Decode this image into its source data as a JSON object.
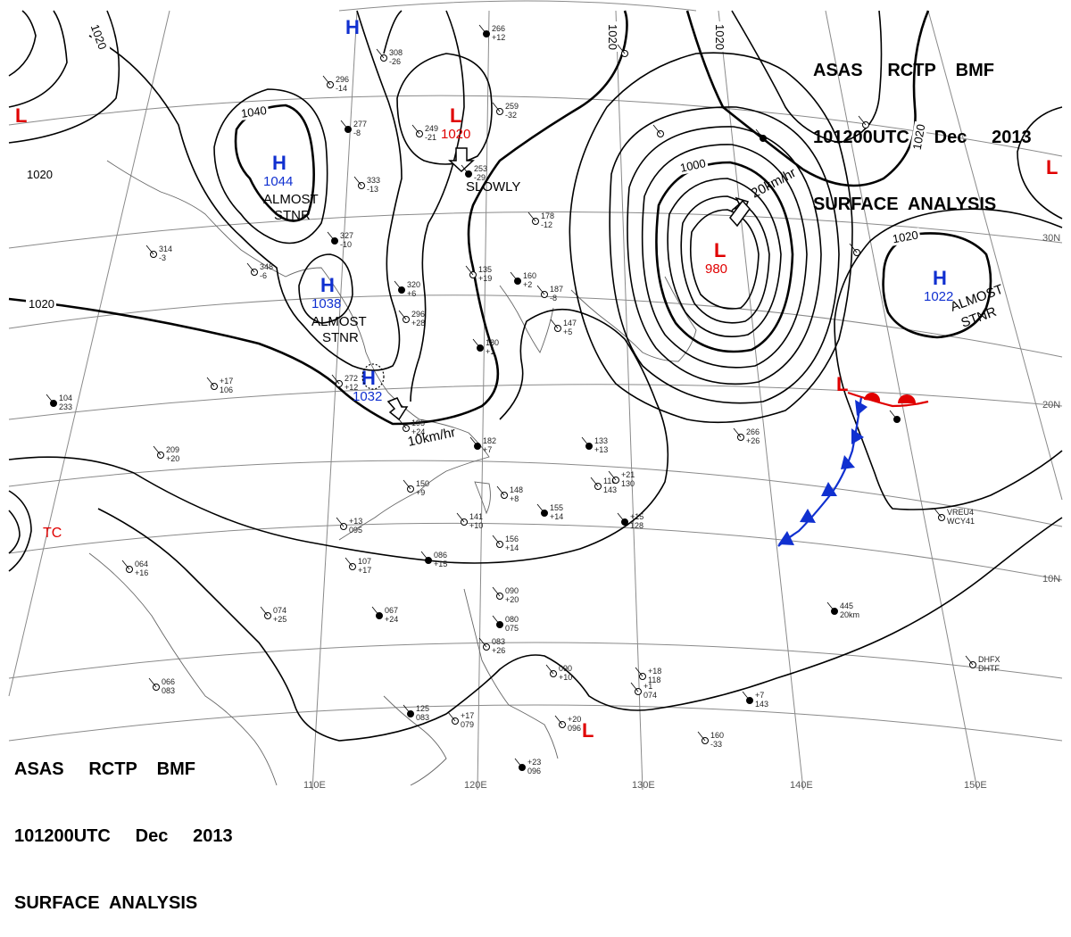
{
  "header": {
    "line1": "ASAS     RCTP    BMF",
    "line2": "101200UTC     Dec     2013",
    "line3": "SURFACE  ANALYSIS"
  },
  "colors": {
    "high": "#1030d0",
    "low": "#e00000",
    "isobar": "#000000",
    "grid": "#8a8a8a",
    "coast": "#666666"
  },
  "isobar_labels": [
    "1020",
    "1040",
    "1000",
    "1020",
    "1020",
    "1020",
    "1020",
    "1020",
    "1020"
  ],
  "centers": [
    {
      "type": "H",
      "value": "1044",
      "note": "ALMOST\nSTNR"
    },
    {
      "type": "H",
      "value": "1038",
      "note": "ALMOST\nSTNR"
    },
    {
      "type": "H",
      "value": "1032",
      "note": ""
    },
    {
      "type": "H",
      "value": "1022",
      "note": "ALMOST\nSTNR"
    },
    {
      "type": "H",
      "value": "",
      "note": ""
    },
    {
      "type": "L",
      "value": "1020",
      "note": ""
    },
    {
      "type": "L",
      "value": "980",
      "note": ""
    },
    {
      "type": "L",
      "value": "",
      "note": ""
    },
    {
      "type": "L",
      "value": "",
      "note": ""
    },
    {
      "type": "L",
      "value": "",
      "note": ""
    },
    {
      "type": "L",
      "value": "",
      "note": ""
    }
  ],
  "motions": [
    "SLOWLY",
    "20km/hr",
    "10km/hr"
  ],
  "tropical": "TC",
  "lon_labels": [
    "110E",
    "120E",
    "130E",
    "140E",
    "150E"
  ],
  "lat_labels": [
    "30N",
    "20N",
    "10N"
  ],
  "station_values": [
    "266",
    "+12",
    "308",
    "-26",
    "296",
    "-14",
    "277",
    "-8",
    "249",
    "-21",
    "259",
    "-32",
    "253",
    "-29",
    "178",
    "-12",
    "333",
    "-13",
    "327",
    "-10",
    "314",
    "-3",
    "348",
    "-6",
    "320",
    "+6",
    "296",
    "+28",
    "135",
    "+19",
    "160",
    "+2",
    "187",
    "-8",
    "147",
    "+5",
    "180",
    "+1",
    "272",
    "+12",
    "+17",
    "106",
    "104",
    "233",
    "209",
    "+20",
    "195",
    "+24",
    "182",
    "+7",
    "150",
    "+9",
    "148",
    "+8",
    "155",
    "+14",
    "141",
    "+10",
    "156",
    "+14",
    "133",
    "+13",
    "110",
    "143",
    "+21",
    "130",
    "+15",
    "128",
    "+13",
    "095",
    "107",
    "+17",
    "086",
    "+15",
    "064",
    "+16",
    "074",
    "+25",
    "067",
    "+24",
    "066",
    "083",
    "090",
    "+20",
    "080",
    "075",
    "083",
    "+26",
    "090",
    "+10",
    "125",
    "083",
    "+17",
    "079",
    "+20",
    "096",
    "+23",
    "096",
    "+18",
    "118",
    "+1",
    "074",
    "+7",
    "143",
    "160",
    "-33",
    "266",
    "+26",
    "445",
    "20km",
    "VREU4",
    "WCY41",
    "DHFX",
    "DHTF"
  ]
}
